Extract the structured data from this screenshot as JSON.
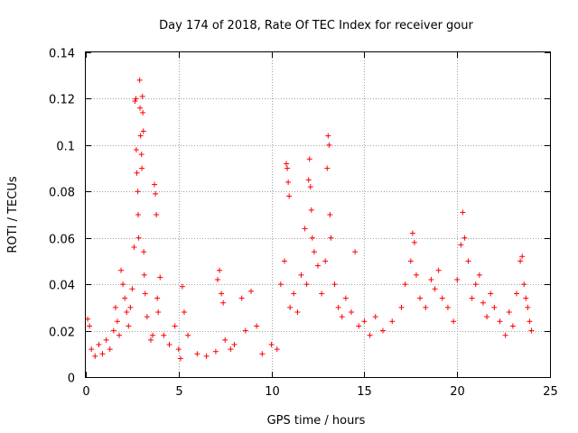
{
  "chart_data": {
    "type": "scatter",
    "title": "Day 174 of 2018, Rate Of TEC Index for receiver gour",
    "xlabel": "GPS time / hours",
    "ylabel": "ROTI / TECUs",
    "xlim": [
      0,
      25
    ],
    "ylim": [
      0,
      0.14
    ],
    "xticks": [
      0,
      5,
      10,
      15,
      20,
      25
    ],
    "xtick_labels": [
      "0",
      "5",
      "10",
      "15",
      "20",
      "25"
    ],
    "yticks": [
      0,
      0.02,
      0.04,
      0.06,
      0.08,
      0.1,
      0.12,
      0.14
    ],
    "ytick_labels": [
      "0",
      "0.02",
      "0.04",
      "0.06",
      "0.08",
      "0.1",
      "0.12",
      "0.14"
    ],
    "grid": true,
    "marker": "plus",
    "series": [
      {
        "name": "ROTI",
        "color": "#ff0000",
        "points": [
          [
            0.1,
            0.025
          ],
          [
            0.2,
            0.022
          ],
          [
            0.3,
            0.012
          ],
          [
            0.5,
            0.009
          ],
          [
            0.7,
            0.014
          ],
          [
            0.9,
            0.01
          ],
          [
            1.1,
            0.016
          ],
          [
            1.3,
            0.012
          ],
          [
            1.5,
            0.02
          ],
          [
            1.6,
            0.03
          ],
          [
            1.7,
            0.024
          ],
          [
            1.8,
            0.018
          ],
          [
            1.9,
            0.046
          ],
          [
            2.0,
            0.04
          ],
          [
            2.1,
            0.034
          ],
          [
            2.2,
            0.028
          ],
          [
            2.3,
            0.022
          ],
          [
            2.4,
            0.03
          ],
          [
            2.5,
            0.038
          ],
          [
            2.6,
            0.056
          ],
          [
            2.65,
            0.119
          ],
          [
            2.7,
            0.12
          ],
          [
            2.72,
            0.098
          ],
          [
            2.75,
            0.088
          ],
          [
            2.8,
            0.08
          ],
          [
            2.82,
            0.07
          ],
          [
            2.85,
            0.06
          ],
          [
            2.9,
            0.128
          ],
          [
            2.92,
            0.116
          ],
          [
            2.95,
            0.104
          ],
          [
            3.0,
            0.096
          ],
          [
            3.02,
            0.09
          ],
          [
            3.05,
            0.121
          ],
          [
            3.07,
            0.114
          ],
          [
            3.1,
            0.106
          ],
          [
            3.12,
            0.054
          ],
          [
            3.15,
            0.044
          ],
          [
            3.2,
            0.036
          ],
          [
            3.3,
            0.026
          ],
          [
            3.5,
            0.016
          ],
          [
            3.6,
            0.018
          ],
          [
            3.7,
            0.083
          ],
          [
            3.75,
            0.079
          ],
          [
            3.8,
            0.07
          ],
          [
            3.85,
            0.034
          ],
          [
            3.9,
            0.028
          ],
          [
            4.0,
            0.043
          ],
          [
            4.2,
            0.018
          ],
          [
            4.5,
            0.014
          ],
          [
            4.8,
            0.022
          ],
          [
            5.0,
            0.012
          ],
          [
            5.1,
            0.008
          ],
          [
            5.2,
            0.039
          ],
          [
            5.3,
            0.028
          ],
          [
            5.5,
            0.018
          ],
          [
            6.0,
            0.01
          ],
          [
            6.5,
            0.009
          ],
          [
            7.0,
            0.011
          ],
          [
            7.1,
            0.042
          ],
          [
            7.2,
            0.046
          ],
          [
            7.3,
            0.036
          ],
          [
            7.4,
            0.032
          ],
          [
            7.5,
            0.016
          ],
          [
            7.8,
            0.012
          ],
          [
            8.0,
            0.014
          ],
          [
            8.4,
            0.034
          ],
          [
            8.6,
            0.02
          ],
          [
            8.9,
            0.037
          ],
          [
            9.2,
            0.022
          ],
          [
            9.5,
            0.01
          ],
          [
            10.0,
            0.014
          ],
          [
            10.3,
            0.012
          ],
          [
            10.5,
            0.04
          ],
          [
            10.7,
            0.05
          ],
          [
            10.8,
            0.092
          ],
          [
            10.85,
            0.09
          ],
          [
            10.9,
            0.084
          ],
          [
            10.95,
            0.078
          ],
          [
            11.0,
            0.03
          ],
          [
            11.2,
            0.036
          ],
          [
            11.4,
            0.028
          ],
          [
            11.6,
            0.044
          ],
          [
            11.8,
            0.064
          ],
          [
            11.9,
            0.04
          ],
          [
            12.0,
            0.085
          ],
          [
            12.05,
            0.094
          ],
          [
            12.1,
            0.082
          ],
          [
            12.15,
            0.072
          ],
          [
            12.2,
            0.06
          ],
          [
            12.3,
            0.054
          ],
          [
            12.5,
            0.048
          ],
          [
            12.7,
            0.036
          ],
          [
            12.9,
            0.05
          ],
          [
            13.0,
            0.09
          ],
          [
            13.05,
            0.104
          ],
          [
            13.1,
            0.1
          ],
          [
            13.15,
            0.07
          ],
          [
            13.2,
            0.06
          ],
          [
            13.4,
            0.04
          ],
          [
            13.6,
            0.03
          ],
          [
            13.8,
            0.026
          ],
          [
            14.0,
            0.034
          ],
          [
            14.3,
            0.028
          ],
          [
            14.5,
            0.054
          ],
          [
            14.7,
            0.022
          ],
          [
            15.0,
            0.024
          ],
          [
            15.3,
            0.018
          ],
          [
            15.6,
            0.026
          ],
          [
            16.0,
            0.02
          ],
          [
            16.5,
            0.024
          ],
          [
            17.0,
            0.03
          ],
          [
            17.2,
            0.04
          ],
          [
            17.5,
            0.05
          ],
          [
            17.6,
            0.062
          ],
          [
            17.7,
            0.058
          ],
          [
            17.8,
            0.044
          ],
          [
            18.0,
            0.034
          ],
          [
            18.3,
            0.03
          ],
          [
            18.6,
            0.042
          ],
          [
            18.8,
            0.038
          ],
          [
            19.0,
            0.046
          ],
          [
            19.2,
            0.034
          ],
          [
            19.5,
            0.03
          ],
          [
            19.8,
            0.024
          ],
          [
            20.0,
            0.042
          ],
          [
            20.2,
            0.057
          ],
          [
            20.3,
            0.071
          ],
          [
            20.4,
            0.06
          ],
          [
            20.6,
            0.05
          ],
          [
            20.8,
            0.034
          ],
          [
            21.0,
            0.04
          ],
          [
            21.2,
            0.044
          ],
          [
            21.4,
            0.032
          ],
          [
            21.6,
            0.026
          ],
          [
            21.8,
            0.036
          ],
          [
            22.0,
            0.03
          ],
          [
            22.3,
            0.024
          ],
          [
            22.6,
            0.018
          ],
          [
            22.8,
            0.028
          ],
          [
            23.0,
            0.022
          ],
          [
            23.2,
            0.036
          ],
          [
            23.4,
            0.05
          ],
          [
            23.5,
            0.052
          ],
          [
            23.6,
            0.04
          ],
          [
            23.7,
            0.034
          ],
          [
            23.8,
            0.03
          ],
          [
            23.9,
            0.024
          ],
          [
            24.0,
            0.02
          ]
        ]
      }
    ]
  }
}
